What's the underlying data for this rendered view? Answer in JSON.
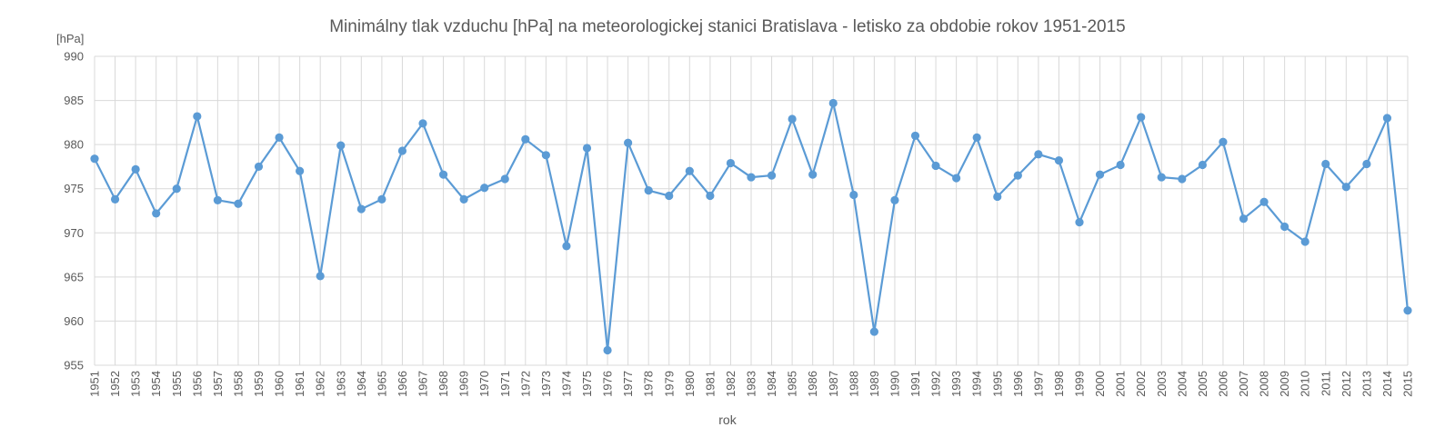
{
  "chart_data": {
    "type": "line",
    "title": "Minimálny tlak vzduchu [hPa] na meteorologickej stanici Bratislava - letisko za obdobie rokov 1951-2015",
    "ylabel": "[hPa]",
    "xlabel": "rok",
    "ylim": [
      955,
      990
    ],
    "yticks": [
      955,
      960,
      965,
      970,
      975,
      980,
      985,
      990
    ],
    "grid": true,
    "color": "#5b9bd5",
    "x": [
      1951,
      1952,
      1953,
      1954,
      1955,
      1956,
      1957,
      1958,
      1959,
      1960,
      1961,
      1962,
      1963,
      1964,
      1965,
      1966,
      1967,
      1968,
      1969,
      1970,
      1971,
      1972,
      1973,
      1974,
      1975,
      1976,
      1977,
      1978,
      1979,
      1980,
      1981,
      1982,
      1983,
      1984,
      1985,
      1986,
      1987,
      1988,
      1989,
      1990,
      1991,
      1992,
      1993,
      1994,
      1995,
      1996,
      1997,
      1998,
      1999,
      2000,
      2001,
      2002,
      2003,
      2004,
      2005,
      2006,
      2007,
      2008,
      2009,
      2010,
      2011,
      2012,
      2013,
      2014,
      2015
    ],
    "values": [
      978.4,
      973.8,
      977.2,
      972.2,
      975.0,
      983.2,
      973.7,
      973.3,
      977.5,
      980.8,
      977.0,
      965.1,
      979.9,
      972.7,
      973.8,
      979.3,
      982.4,
      976.6,
      973.8,
      975.1,
      976.1,
      980.6,
      978.8,
      968.5,
      979.6,
      956.7,
      980.2,
      974.8,
      974.2,
      977.0,
      974.2,
      977.9,
      976.3,
      976.5,
      982.9,
      976.6,
      984.7,
      974.3,
      958.8,
      973.7,
      981.0,
      977.6,
      976.2,
      980.8,
      974.1,
      976.5,
      978.9,
      978.2,
      971.2,
      976.6,
      977.7,
      983.1,
      976.3,
      976.1,
      977.7,
      980.3,
      971.6,
      973.5,
      970.7,
      969.0,
      977.8,
      975.2,
      977.8,
      983.0,
      961.2
    ]
  }
}
